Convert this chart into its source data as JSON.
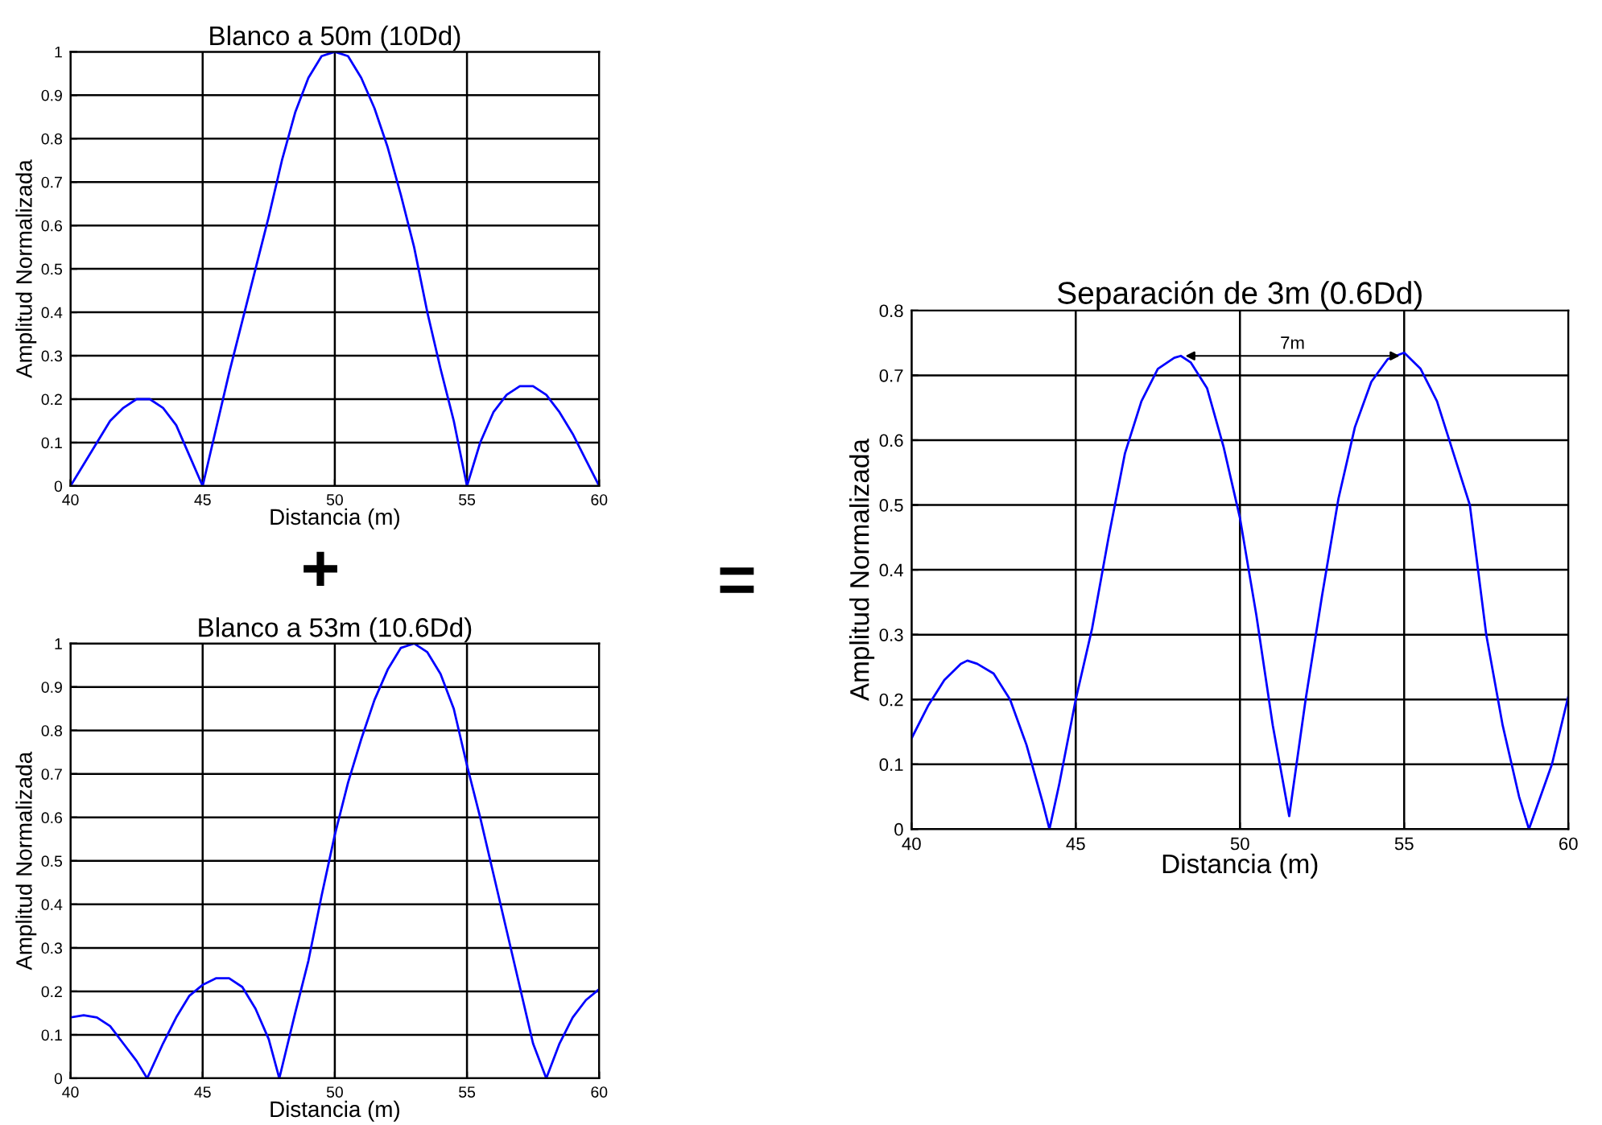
{
  "chart_data": [
    {
      "type": "line",
      "title": "Blanco a 50m (10Dd)",
      "xlabel": "Distancia (m)",
      "ylabel": "Amplitud Normalizada",
      "xlim": [
        40,
        60
      ],
      "ylim": [
        0,
        1
      ],
      "xticks": [
        40,
        45,
        50,
        55,
        60
      ],
      "yticks": [
        0,
        0.1,
        0.2,
        0.3,
        0.4,
        0.5,
        0.6,
        0.7,
        0.8,
        0.9,
        1
      ],
      "grid": true,
      "annotations": [
        "+"
      ],
      "series": [
        {
          "color": "#0000ff",
          "x": [
            40,
            40.5,
            41,
            41.5,
            42,
            42.5,
            43,
            43.5,
            44,
            44.5,
            45,
            45.5,
            46,
            46.5,
            47,
            47.5,
            48,
            48.5,
            49,
            49.5,
            50,
            50.5,
            51,
            51.5,
            52,
            52.5,
            53,
            53.5,
            54,
            54.5,
            55,
            55.5,
            56,
            56.5,
            57,
            57.5,
            58,
            58.5,
            59,
            59.5,
            60
          ],
          "values": [
            0,
            0.05,
            0.1,
            0.15,
            0.18,
            0.2,
            0.2,
            0.18,
            0.14,
            0.07,
            0,
            0.13,
            0.26,
            0.38,
            0.5,
            0.62,
            0.75,
            0.86,
            0.94,
            0.99,
            1,
            0.99,
            0.94,
            0.87,
            0.78,
            0.67,
            0.55,
            0.4,
            0.27,
            0.15,
            0,
            0.1,
            0.17,
            0.21,
            0.23,
            0.23,
            0.21,
            0.17,
            0.12,
            0.06,
            0
          ]
        }
      ]
    },
    {
      "type": "line",
      "title": "Blanco a 53m (10.6Dd)",
      "xlabel": "Distancia (m)",
      "ylabel": "Amplitud Normalizada",
      "xlim": [
        40,
        60
      ],
      "ylim": [
        0,
        1
      ],
      "xticks": [
        40,
        45,
        50,
        55,
        60
      ],
      "yticks": [
        0,
        0.1,
        0.2,
        0.3,
        0.4,
        0.5,
        0.6,
        0.7,
        0.8,
        0.9,
        1
      ],
      "grid": true,
      "series": [
        {
          "color": "#0000ff",
          "x": [
            40,
            40.5,
            41,
            41.5,
            42,
            42.5,
            42.9,
            43.5,
            44,
            44.5,
            45,
            45.5,
            46,
            46.5,
            47,
            47.5,
            47.9,
            48.5,
            49,
            49.5,
            50,
            50.5,
            51,
            51.5,
            52,
            52.5,
            53,
            53.5,
            54,
            54.5,
            55,
            55.5,
            56,
            56.5,
            57,
            57.5,
            58,
            58.5,
            59,
            59.5,
            60
          ],
          "values": [
            0.14,
            0.145,
            0.14,
            0.12,
            0.08,
            0.04,
            0,
            0.08,
            0.14,
            0.19,
            0.215,
            0.23,
            0.23,
            0.21,
            0.16,
            0.09,
            0,
            0.15,
            0.27,
            0.42,
            0.56,
            0.68,
            0.78,
            0.87,
            0.94,
            0.99,
            1,
            0.98,
            0.93,
            0.85,
            0.72,
            0.6,
            0.47,
            0.34,
            0.21,
            0.08,
            0,
            0.08,
            0.14,
            0.18,
            0.205
          ]
        }
      ]
    },
    {
      "type": "line",
      "title": "Separación de 3m (0.6Dd)",
      "xlabel": "Distancia (m)",
      "ylabel": "Amplitud Normalizada",
      "xlim": [
        40,
        60
      ],
      "ylim": [
        0,
        0.8
      ],
      "xticks": [
        40,
        45,
        50,
        55,
        60
      ],
      "yticks": [
        0,
        0.1,
        0.2,
        0.3,
        0.4,
        0.5,
        0.6,
        0.7,
        0.8
      ],
      "grid": true,
      "annotations": [
        "=",
        "7m"
      ],
      "series": [
        {
          "color": "#0000ff",
          "x": [
            40,
            40.5,
            41,
            41.5,
            41.7,
            42,
            42.5,
            43,
            43.5,
            44,
            44.2,
            44.5,
            45,
            45.5,
            46,
            46.5,
            47,
            47.5,
            48,
            48.2,
            48.5,
            49,
            49.5,
            50,
            50.5,
            51,
            51.5,
            52,
            52.5,
            53,
            53.5,
            54,
            54.5,
            55,
            55.5,
            56,
            56.5,
            57,
            57.5,
            58,
            58.5,
            58.8,
            59.5,
            60
          ],
          "values": [
            0.14,
            0.19,
            0.23,
            0.255,
            0.26,
            0.255,
            0.24,
            0.2,
            0.13,
            0.04,
            0,
            0.07,
            0.2,
            0.31,
            0.45,
            0.58,
            0.66,
            0.71,
            0.727,
            0.73,
            0.72,
            0.68,
            0.59,
            0.48,
            0.33,
            0.16,
            0.02,
            0.2,
            0.36,
            0.51,
            0.62,
            0.69,
            0.725,
            0.735,
            0.71,
            0.66,
            0.58,
            0.5,
            0.3,
            0.16,
            0.05,
            0,
            0.1,
            0.205
          ]
        }
      ]
    }
  ]
}
